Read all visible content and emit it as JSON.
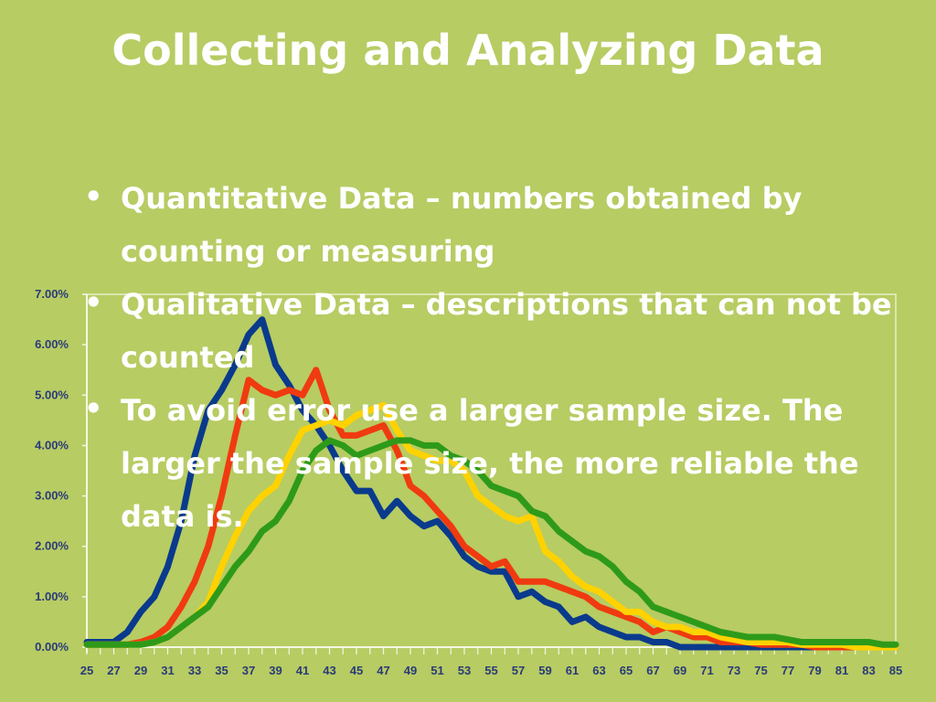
{
  "slide": {
    "title": "Collecting and Analyzing Data",
    "bullets": [
      "Quantitative Data – numbers obtained by counting or measuring",
      "Qualitative Data – descriptions that can not be counted",
      "To avoid error use a larger sample size. The larger the sample size, the more reliable the data is."
    ]
  },
  "chart_data": {
    "type": "line",
    "title": "",
    "xlabel": "",
    "ylabel": "",
    "xlim": [
      25,
      85
    ],
    "ylim": [
      0,
      7
    ],
    "x_ticks": [
      25,
      27,
      29,
      31,
      33,
      35,
      37,
      39,
      41,
      43,
      45,
      47,
      49,
      51,
      53,
      55,
      57,
      59,
      61,
      63,
      65,
      67,
      69,
      71,
      73,
      75,
      77,
      79,
      81,
      83,
      85
    ],
    "y_ticks": [
      "0.00%",
      "1.00%",
      "2.00%",
      "3.00%",
      "4.00%",
      "5.00%",
      "6.00%",
      "7.00%"
    ],
    "y_tick_values": [
      0,
      1,
      2,
      3,
      4,
      5,
      6,
      7
    ],
    "grid": false,
    "x": [
      25,
      26,
      27,
      28,
      29,
      30,
      31,
      32,
      33,
      34,
      35,
      36,
      37,
      38,
      39,
      40,
      41,
      42,
      43,
      44,
      45,
      46,
      47,
      48,
      49,
      50,
      51,
      52,
      53,
      54,
      55,
      56,
      57,
      58,
      59,
      60,
      61,
      62,
      63,
      64,
      65,
      66,
      67,
      68,
      69,
      70,
      71,
      72,
      73,
      74,
      75,
      76,
      77,
      78,
      79,
      80,
      81,
      82,
      83,
      84,
      85
    ],
    "series": [
      {
        "color": "#0a3a8c",
        "values": [
          0.1,
          0.1,
          0.1,
          0.3,
          0.7,
          1.0,
          1.6,
          2.5,
          3.8,
          4.7,
          5.1,
          5.6,
          6.2,
          6.5,
          5.6,
          5.2,
          4.7,
          4.4,
          4.0,
          3.5,
          3.1,
          3.1,
          2.6,
          2.9,
          2.6,
          2.4,
          2.5,
          2.2,
          1.8,
          1.6,
          1.5,
          1.5,
          1.0,
          1.1,
          0.9,
          0.8,
          0.5,
          0.6,
          0.4,
          0.3,
          0.2,
          0.2,
          0.1,
          0.1,
          0.0,
          0.0,
          0.0,
          0.0,
          0.0,
          0.0,
          0.0,
          0.0,
          0.0,
          0.0,
          0.0,
          0.0,
          0.0,
          0.0,
          0.0,
          0.0,
          0.0
        ]
      },
      {
        "color": "#f03a10",
        "values": [
          0.05,
          0.05,
          0.05,
          0.05,
          0.1,
          0.2,
          0.4,
          0.8,
          1.3,
          2.0,
          3.0,
          4.2,
          5.3,
          5.1,
          5.0,
          5.1,
          5.0,
          5.5,
          4.7,
          4.2,
          4.2,
          4.3,
          4.4,
          3.9,
          3.2,
          3.0,
          2.7,
          2.4,
          2.0,
          1.8,
          1.6,
          1.7,
          1.3,
          1.3,
          1.3,
          1.2,
          1.1,
          1.0,
          0.8,
          0.7,
          0.6,
          0.5,
          0.3,
          0.4,
          0.3,
          0.2,
          0.2,
          0.1,
          0.1,
          0.1,
          0.05,
          0.05,
          0.05,
          0.05,
          0.0,
          0.0,
          0.0,
          0.0,
          0.0,
          0.0,
          0.0
        ]
      },
      {
        "color": "#ffd200",
        "values": [
          0.05,
          0.05,
          0.05,
          0.05,
          0.05,
          0.1,
          0.2,
          0.4,
          0.6,
          0.9,
          1.6,
          2.2,
          2.7,
          3.0,
          3.2,
          3.8,
          4.3,
          4.4,
          4.5,
          4.4,
          4.6,
          4.7,
          4.8,
          4.3,
          3.9,
          3.8,
          3.7,
          3.7,
          3.5,
          3.0,
          2.8,
          2.6,
          2.5,
          2.6,
          1.9,
          1.7,
          1.4,
          1.2,
          1.1,
          0.9,
          0.7,
          0.7,
          0.5,
          0.4,
          0.4,
          0.3,
          0.3,
          0.2,
          0.15,
          0.1,
          0.1,
          0.1,
          0.1,
          0.05,
          0.05,
          0.05,
          0.05,
          0.0,
          0.0,
          0.0,
          0.0
        ]
      },
      {
        "color": "#2e9a1a",
        "values": [
          0.05,
          0.05,
          0.05,
          0.05,
          0.05,
          0.1,
          0.2,
          0.4,
          0.6,
          0.8,
          1.2,
          1.6,
          1.9,
          2.3,
          2.5,
          2.9,
          3.5,
          3.9,
          4.1,
          4.0,
          3.8,
          3.9,
          4.0,
          4.1,
          4.1,
          4.0,
          4.0,
          3.8,
          3.7,
          3.5,
          3.2,
          3.1,
          3.0,
          2.7,
          2.6,
          2.3,
          2.1,
          1.9,
          1.8,
          1.6,
          1.3,
          1.1,
          0.8,
          0.7,
          0.6,
          0.5,
          0.4,
          0.3,
          0.25,
          0.2,
          0.2,
          0.2,
          0.15,
          0.1,
          0.1,
          0.1,
          0.1,
          0.1,
          0.1,
          0.05,
          0.05
        ]
      }
    ]
  }
}
